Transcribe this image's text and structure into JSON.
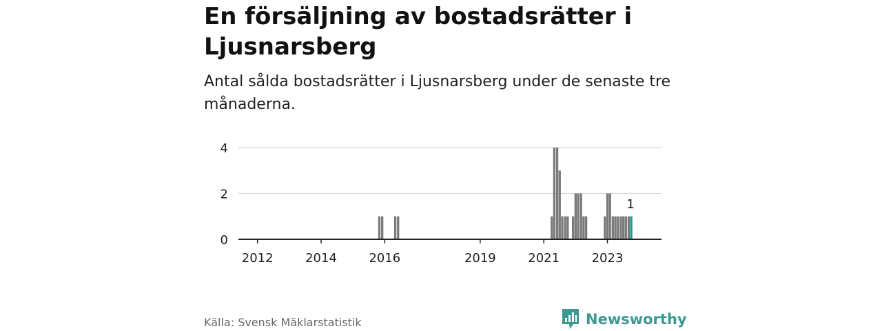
{
  "header": {
    "title": "En försäljning av bostadsrätter i Ljusnarsberg",
    "subtitle": "Antal sålda bostadsrätter i Ljusnarsberg under de senaste tre månaderna."
  },
  "footer": {
    "source": "Källa: Svensk Mäklarstatistik",
    "brand": "Newsworthy"
  },
  "colors": {
    "bar": "#7a7a7a",
    "highlight": "#1a9d96",
    "axis": "#222222",
    "grid": "#d6d6d6",
    "brand": "#3a9a92"
  },
  "chart_data": {
    "type": "bar",
    "title": "En försäljning av bostadsrätter i Ljusnarsberg",
    "xlabel": "",
    "ylabel": "",
    "ylim": [
      0,
      4
    ],
    "yticks": [
      "0",
      "2",
      "4"
    ],
    "xticks": [
      {
        "label": "2012",
        "year": 2012.0
      },
      {
        "label": "2014",
        "year": 2014.0
      },
      {
        "label": "2016",
        "year": 2016.0
      },
      {
        "label": "2019",
        "year": 2019.0
      },
      {
        "label": "2021",
        "year": 2021.0
      },
      {
        "label": "2023",
        "year": 2023.0
      }
    ],
    "xlim": [
      2011.4,
      2024.7
    ],
    "series": [
      {
        "name": "Sålda bostadsrätter",
        "points": [
          {
            "year": 2015.83,
            "value": 1
          },
          {
            "year": 2015.92,
            "value": 1
          },
          {
            "year": 2016.33,
            "value": 1
          },
          {
            "year": 2016.42,
            "value": 1
          },
          {
            "year": 2021.25,
            "value": 1
          },
          {
            "year": 2021.33,
            "value": 4
          },
          {
            "year": 2021.42,
            "value": 4
          },
          {
            "year": 2021.5,
            "value": 3
          },
          {
            "year": 2021.58,
            "value": 1
          },
          {
            "year": 2021.67,
            "value": 1
          },
          {
            "year": 2021.75,
            "value": 1
          },
          {
            "year": 2021.92,
            "value": 1
          },
          {
            "year": 2022.0,
            "value": 2
          },
          {
            "year": 2022.08,
            "value": 2
          },
          {
            "year": 2022.17,
            "value": 2
          },
          {
            "year": 2022.25,
            "value": 1
          },
          {
            "year": 2022.33,
            "value": 1
          },
          {
            "year": 2022.92,
            "value": 1
          },
          {
            "year": 2023.0,
            "value": 2
          },
          {
            "year": 2023.08,
            "value": 2
          },
          {
            "year": 2023.17,
            "value": 1
          },
          {
            "year": 2023.25,
            "value": 1
          },
          {
            "year": 2023.33,
            "value": 1
          },
          {
            "year": 2023.42,
            "value": 1
          },
          {
            "year": 2023.5,
            "value": 1
          },
          {
            "year": 2023.58,
            "value": 1
          },
          {
            "year": 2023.67,
            "value": 1
          },
          {
            "year": 2023.75,
            "value": 1,
            "highlight": true
          }
        ]
      }
    ],
    "annotation": {
      "label": "1",
      "year": 2023.75,
      "value": 1
    }
  }
}
